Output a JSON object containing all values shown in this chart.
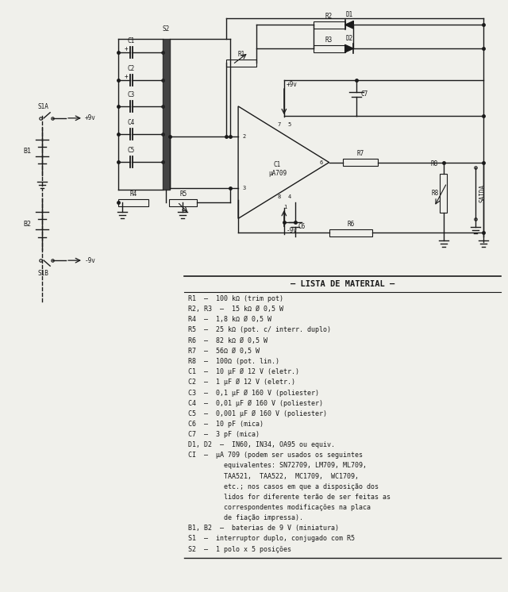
{
  "background_color": "#f0f0eb",
  "lista_title": "— LISTA DE MATERIAL —",
  "lista_items": [
    "R1  —  100 kΩ (trim pot)",
    "R2, R3  —  15 kΩ Ø 0,5 W",
    "R4  —  1,8 kΩ Ø 0,5 W",
    "R5  —  25 kΩ (pot. c/ interr. duplo)",
    "R6  —  82 kΩ Ø 0,5 W",
    "R7  —  56Ω Ø 0,5 W",
    "R8  —  100Ω (pot. lin.)",
    "C1  —  10 μF Ø 12 V (eletr.)",
    "C2  —  1 μF Ø 12 V (eletr.)",
    "C3  —  0,1 μF Ø 160 V (poliester)",
    "C4  —  0,01 μF Ø 160 V (poliester)",
    "C5  —  0,001 μF Ø 160 V (poliester)",
    "C6  —  10 pF (mica)",
    "C7  —  3 pF (mica)",
    "D1, D2  —  IN60, IN34, OA95 ou equiv.",
    "CI  —  μA 709 (podem ser usados os seguintes",
    "         equivalentes: SN72709, LM709, ML709,",
    "         TAA521,  TAA522,  MC1709,  WC1709,",
    "         etc.; nos casos em que a disposição dos",
    "         lidos for diferente terão de ser feitas as",
    "         correspondentes modificações na placa",
    "         de fiação impressa).",
    "B1, B2  —  baterias de 9 V (miniatura)",
    "S1  —  interruptor duplo, conjugado com R5",
    "S2  —  1 polo x 5 posições"
  ],
  "circuit_color": "#1a1a1a",
  "text_color": "#1a1a1a"
}
